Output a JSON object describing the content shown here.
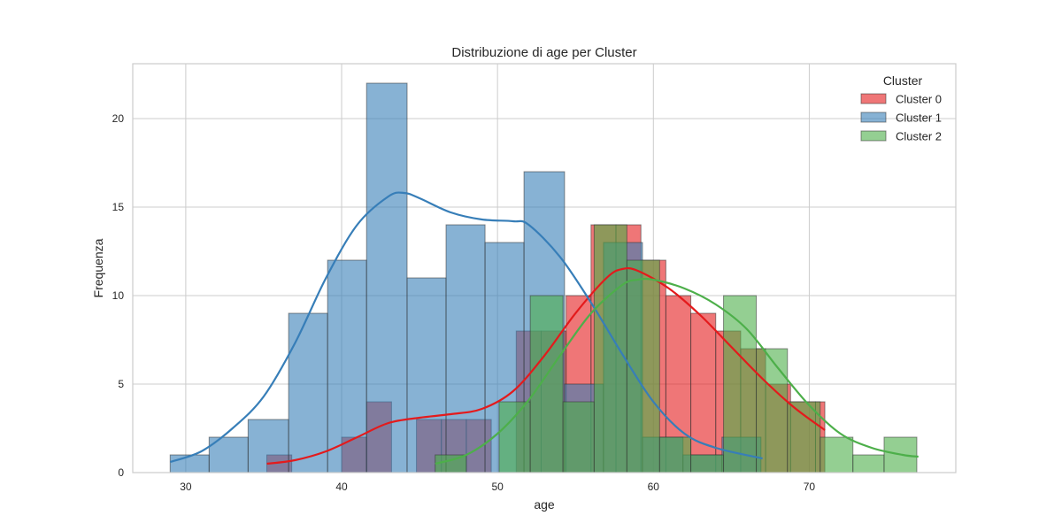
{
  "chart_data": {
    "type": "histogram",
    "title": "Distribuzione di age per Cluster",
    "xlabel": "age",
    "ylabel": "Frequenza",
    "xlim": [
      26.6,
      79.4
    ],
    "ylim": [
      0,
      23.1
    ],
    "x_ticks": [
      30,
      40,
      50,
      60,
      70
    ],
    "y_ticks": [
      0,
      5,
      10,
      15,
      20
    ],
    "grid": true,
    "legend": {
      "title": "Cluster",
      "position": "top-right"
    },
    "series": [
      {
        "name": "Cluster 0",
        "color": "#e41a1c",
        "bins": [
          [
            35.2,
            36.8,
            1
          ],
          [
            40.0,
            41.6,
            2
          ],
          [
            41.6,
            43.2,
            4
          ],
          [
            44.8,
            46.4,
            3
          ],
          [
            46.4,
            48.0,
            3
          ],
          [
            48.0,
            49.6,
            3
          ],
          [
            51.2,
            52.8,
            8
          ],
          [
            52.8,
            54.4,
            8
          ],
          [
            54.4,
            56.0,
            10
          ],
          [
            56.0,
            57.6,
            14
          ],
          [
            57.6,
            59.2,
            14
          ],
          [
            59.2,
            60.8,
            12
          ],
          [
            60.8,
            62.4,
            10
          ],
          [
            62.4,
            64.0,
            9
          ],
          [
            64.0,
            65.6,
            8
          ],
          [
            65.6,
            67.2,
            7
          ],
          [
            67.2,
            68.8,
            5
          ],
          [
            68.8,
            70.4,
            4
          ],
          [
            70.4,
            71.0,
            4
          ]
        ],
        "kde": [
          [
            35.2,
            0.5
          ],
          [
            37,
            0.7
          ],
          [
            39,
            1.2
          ],
          [
            41,
            2.0
          ],
          [
            43,
            2.8
          ],
          [
            45,
            3.1
          ],
          [
            47,
            3.3
          ],
          [
            49,
            3.6
          ],
          [
            51,
            4.6
          ],
          [
            53,
            6.6
          ],
          [
            55,
            9.0
          ],
          [
            57,
            11.0
          ],
          [
            58,
            11.5
          ],
          [
            59,
            11.4
          ],
          [
            61,
            10.4
          ],
          [
            63,
            8.9
          ],
          [
            65,
            7.1
          ],
          [
            67,
            5.3
          ],
          [
            69,
            3.7
          ],
          [
            71,
            2.4
          ]
        ]
      },
      {
        "name": "Cluster 1",
        "color": "#377eb8",
        "bins": [
          [
            29.0,
            31.5,
            1
          ],
          [
            31.5,
            34.0,
            2
          ],
          [
            34.0,
            36.6,
            3
          ],
          [
            36.6,
            39.1,
            9
          ],
          [
            39.1,
            41.6,
            12
          ],
          [
            41.6,
            44.2,
            22
          ],
          [
            44.2,
            46.7,
            11
          ],
          [
            46.7,
            49.2,
            14
          ],
          [
            49.2,
            51.7,
            13
          ],
          [
            51.7,
            54.3,
            17
          ],
          [
            54.3,
            56.8,
            5
          ],
          [
            56.8,
            59.3,
            13
          ],
          [
            59.3,
            61.9,
            2
          ],
          [
            61.9,
            64.4,
            1
          ],
          [
            64.4,
            66.9,
            2
          ]
        ],
        "kde": [
          [
            29,
            0.6
          ],
          [
            31,
            1.2
          ],
          [
            33,
            2.5
          ],
          [
            35,
            4.3
          ],
          [
            37,
            7.3
          ],
          [
            39,
            11.0
          ],
          [
            41,
            14.0
          ],
          [
            43,
            15.6
          ],
          [
            44,
            15.8
          ],
          [
            45,
            15.5
          ],
          [
            47,
            14.7
          ],
          [
            49,
            14.3
          ],
          [
            51,
            14.2
          ],
          [
            52,
            14.0
          ],
          [
            54,
            12.2
          ],
          [
            56,
            9.6
          ],
          [
            58,
            6.7
          ],
          [
            60,
            4.0
          ],
          [
            62,
            2.2
          ],
          [
            64,
            1.4
          ],
          [
            67,
            0.8
          ]
        ]
      },
      {
        "name": "Cluster 2",
        "color": "#4daf4a",
        "bins": [
          [
            46.0,
            48.0,
            1
          ],
          [
            50.1,
            52.1,
            4
          ],
          [
            52.1,
            54.2,
            10
          ],
          [
            54.2,
            56.2,
            4
          ],
          [
            56.2,
            58.3,
            14
          ],
          [
            58.3,
            60.4,
            12
          ],
          [
            60.4,
            62.4,
            2
          ],
          [
            62.4,
            64.5,
            1
          ],
          [
            64.5,
            66.6,
            10
          ],
          [
            66.6,
            68.6,
            7
          ],
          [
            68.6,
            70.7,
            4
          ],
          [
            70.7,
            72.8,
            2
          ],
          [
            72.8,
            74.8,
            1
          ],
          [
            74.8,
            76.9,
            2
          ]
        ],
        "kde": [
          [
            46,
            0.5
          ],
          [
            48,
            1.0
          ],
          [
            50,
            2.2
          ],
          [
            52,
            4.1
          ],
          [
            54,
            6.6
          ],
          [
            56,
            9.0
          ],
          [
            58,
            10.6
          ],
          [
            59,
            10.9
          ],
          [
            60,
            10.9
          ],
          [
            62,
            10.4
          ],
          [
            64,
            9.5
          ],
          [
            66,
            8.1
          ],
          [
            68,
            5.9
          ],
          [
            70,
            3.8
          ],
          [
            72,
            2.2
          ],
          [
            74,
            1.4
          ],
          [
            76,
            1.0
          ],
          [
            77,
            0.9
          ]
        ]
      }
    ]
  }
}
